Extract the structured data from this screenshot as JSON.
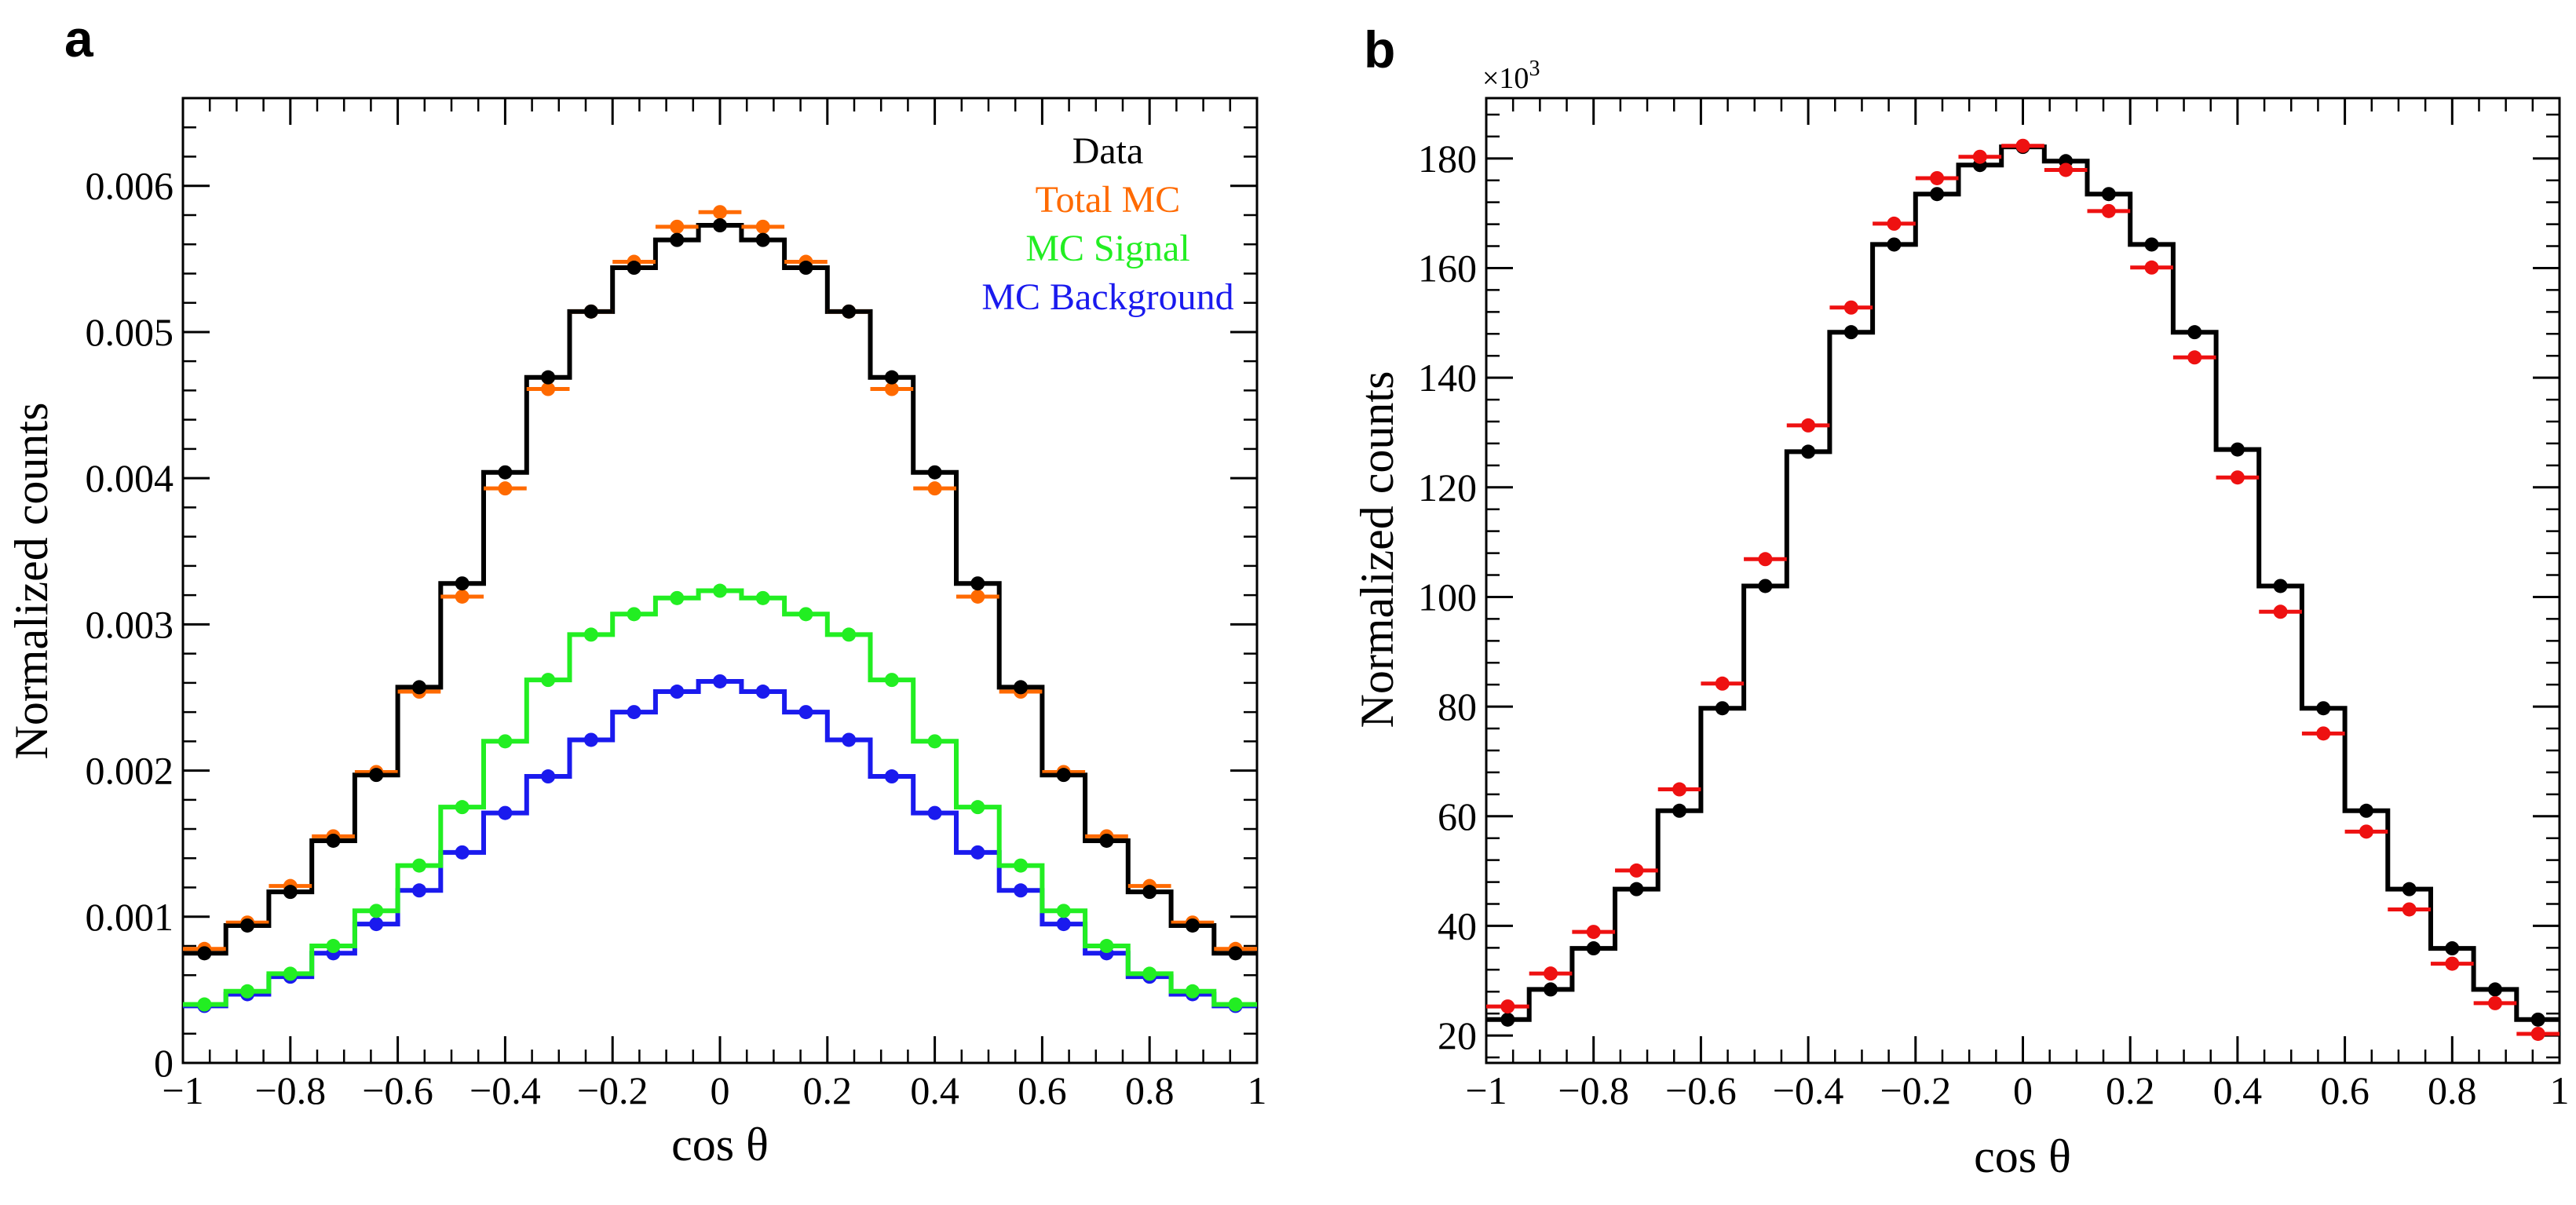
{
  "chart_data": [
    {
      "panel": "a",
      "type": "line",
      "xlabel": "cos θ",
      "ylabel": "Normalized counts",
      "xlim": [
        -1,
        1
      ],
      "ylim": [
        0,
        0.0066
      ],
      "xticks": [
        "−1",
        "−0.8",
        "−0.6",
        "−0.4",
        "−0.2",
        "0",
        "0.2",
        "0.4",
        "0.6",
        "0.8",
        "1"
      ],
      "yticks": [
        "0",
        "0.001",
        "0.002",
        "0.003",
        "0.004",
        "0.005",
        "0.006"
      ],
      "legend_position": "top-right",
      "x": [
        -0.96,
        -0.88,
        -0.8,
        -0.72,
        -0.64,
        -0.56,
        -0.48,
        -0.4,
        -0.32,
        -0.24,
        -0.16,
        -0.08,
        0,
        0.08,
        0.16,
        0.24,
        0.32,
        0.4,
        0.48,
        0.56,
        0.64,
        0.72,
        0.8,
        0.88,
        0.96
      ],
      "series": [
        {
          "name": "Data",
          "color": "#000000",
          "style": "points",
          "values": [
            0.00075,
            0.00094,
            0.00117,
            0.00152,
            0.00197,
            0.00257,
            0.00328,
            0.00404,
            0.00469,
            0.00514,
            0.00544,
            0.00563,
            0.00573,
            0.00563,
            0.00544,
            0.00514,
            0.00469,
            0.00404,
            0.00328,
            0.00257,
            0.00197,
            0.00152,
            0.00117,
            0.00094,
            0.00075
          ]
        },
        {
          "name": "Total MC",
          "color": "#ff6a00",
          "style": "points",
          "values": [
            0.00078,
            0.00096,
            0.00121,
            0.00155,
            0.00199,
            0.00254,
            0.00319,
            0.00393,
            0.00461,
            0.00514,
            0.00548,
            0.00572,
            0.00582,
            0.00572,
            0.00548,
            0.00514,
            0.00461,
            0.00393,
            0.00319,
            0.00254,
            0.00199,
            0.00155,
            0.00121,
            0.00096,
            0.00078
          ]
        },
        {
          "name": "",
          "color": "#000000",
          "style": "step",
          "values": [
            0.00075,
            0.00094,
            0.00117,
            0.00152,
            0.00197,
            0.00257,
            0.00328,
            0.00404,
            0.00469,
            0.00514,
            0.00544,
            0.00563,
            0.00573,
            0.00563,
            0.00544,
            0.00514,
            0.00469,
            0.00404,
            0.00328,
            0.00257,
            0.00197,
            0.00152,
            0.00117,
            0.00094,
            0.00075
          ]
        },
        {
          "name": "MC Signal",
          "color": "#22ee22",
          "style": "step+points",
          "values": [
            0.0004,
            0.00049,
            0.00061,
            0.0008,
            0.00104,
            0.00135,
            0.00175,
            0.0022,
            0.00262,
            0.00293,
            0.00307,
            0.00318,
            0.00323,
            0.00318,
            0.00307,
            0.00293,
            0.00262,
            0.0022,
            0.00175,
            0.00135,
            0.00104,
            0.0008,
            0.00061,
            0.00049,
            0.0004
          ]
        },
        {
          "name": "MC Background",
          "color": "#1a1aee",
          "style": "step+points",
          "values": [
            0.00039,
            0.00047,
            0.00059,
            0.00075,
            0.00095,
            0.00118,
            0.00144,
            0.00171,
            0.00196,
            0.00221,
            0.0024,
            0.00254,
            0.00261,
            0.00254,
            0.0024,
            0.00221,
            0.00196,
            0.00171,
            0.00144,
            0.00118,
            0.00095,
            0.00075,
            0.00059,
            0.00047,
            0.00039
          ]
        }
      ]
    },
    {
      "panel": "b",
      "type": "line",
      "xlabel": "cos θ",
      "ylabel": "Normalized counts",
      "y_multiplier": "×10",
      "y_multiplier_exp": "3",
      "xlim": [
        -1,
        1
      ],
      "ylim": [
        15,
        191
      ],
      "xticks": [
        "−1",
        "−0.8",
        "−0.6",
        "−0.4",
        "−0.2",
        "0",
        "0.2",
        "0.4",
        "0.6",
        "0.8",
        "1"
      ],
      "yticks": [
        "20",
        "40",
        "60",
        "80",
        "100",
        "120",
        "140",
        "160",
        "180"
      ],
      "x": [
        -0.96,
        -0.88,
        -0.8,
        -0.72,
        -0.64,
        -0.56,
        -0.48,
        -0.4,
        -0.32,
        -0.24,
        -0.16,
        -0.08,
        0,
        0.08,
        0.16,
        0.24,
        0.32,
        0.4,
        0.48,
        0.56,
        0.64,
        0.72,
        0.8,
        0.88,
        0.96
      ],
      "series": [
        {
          "name": "",
          "color": "#000000",
          "style": "step+points",
          "values": [
            22.9,
            28.4,
            35.9,
            46.7,
            61.0,
            79.7,
            102.0,
            126.5,
            148.3,
            164.3,
            173.5,
            178.8,
            182.1,
            179.5,
            173.5,
            164.3,
            148.3,
            126.9,
            102.0,
            79.7,
            61.0,
            46.7,
            35.9,
            28.4,
            22.9
          ]
        },
        {
          "name": "",
          "color": "#ee1111",
          "style": "points",
          "values": [
            25.3,
            31.3,
            38.9,
            50.1,
            64.9,
            84.2,
            106.9,
            131.3,
            152.8,
            168.1,
            176.4,
            180.3,
            182.3,
            177.9,
            170.4,
            160.1,
            143.7,
            121.8,
            97.3,
            75.1,
            57.2,
            43.0,
            33.1,
            25.9,
            20.3
          ]
        }
      ]
    }
  ]
}
